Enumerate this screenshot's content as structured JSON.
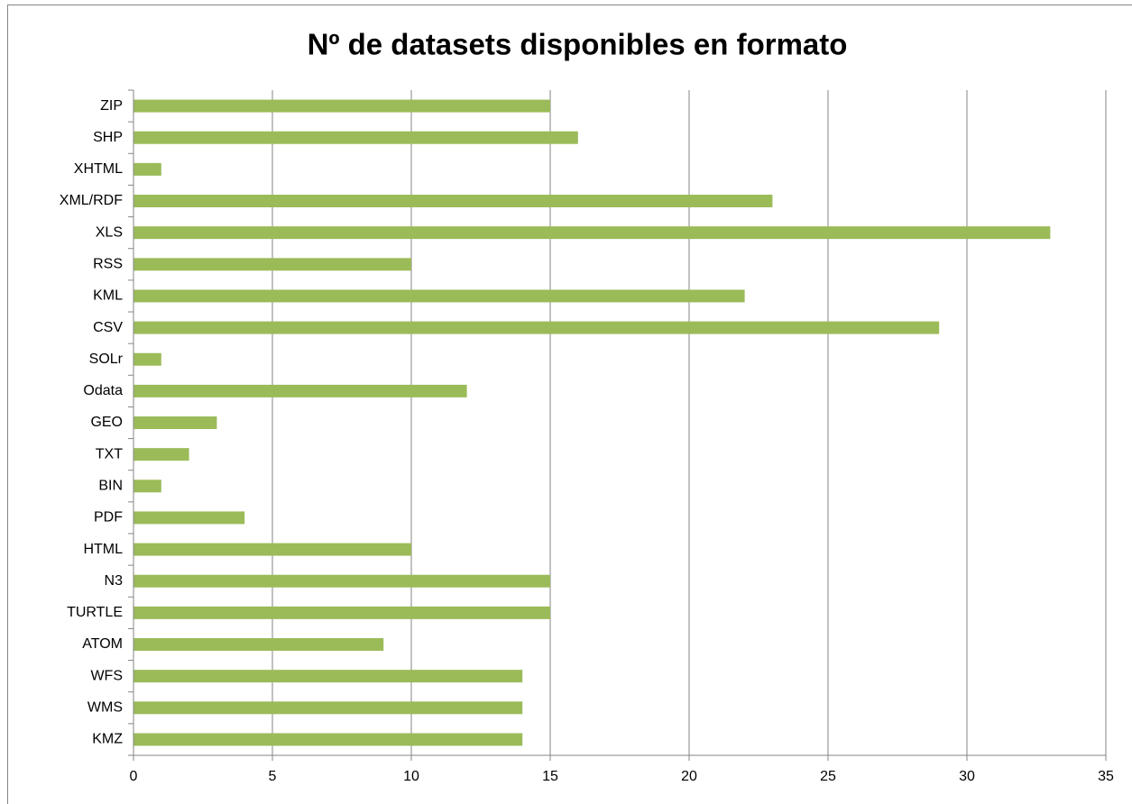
{
  "chart_data": {
    "type": "barh",
    "title": "Nº de datasets disponibles en formato",
    "categories": [
      "ZIP",
      "SHP",
      "XHTML",
      "XML/RDF",
      "XLS",
      "RSS",
      "KML",
      "CSV",
      "SOLr",
      "Odata",
      "GEO",
      "TXT",
      "BIN",
      "PDF",
      "HTML",
      "N3",
      "TURTLE",
      "ATOM",
      "WFS",
      "WMS",
      "KMZ"
    ],
    "values": [
      15,
      16,
      1,
      23,
      33,
      10,
      22,
      29,
      1,
      12,
      3,
      2,
      1,
      4,
      10,
      15,
      15,
      9,
      14,
      14,
      14
    ],
    "color": "#9bbb59",
    "xlim": [
      0,
      35
    ],
    "xticks": [
      0,
      5,
      10,
      15,
      20,
      25,
      30,
      35
    ],
    "grid": true
  }
}
